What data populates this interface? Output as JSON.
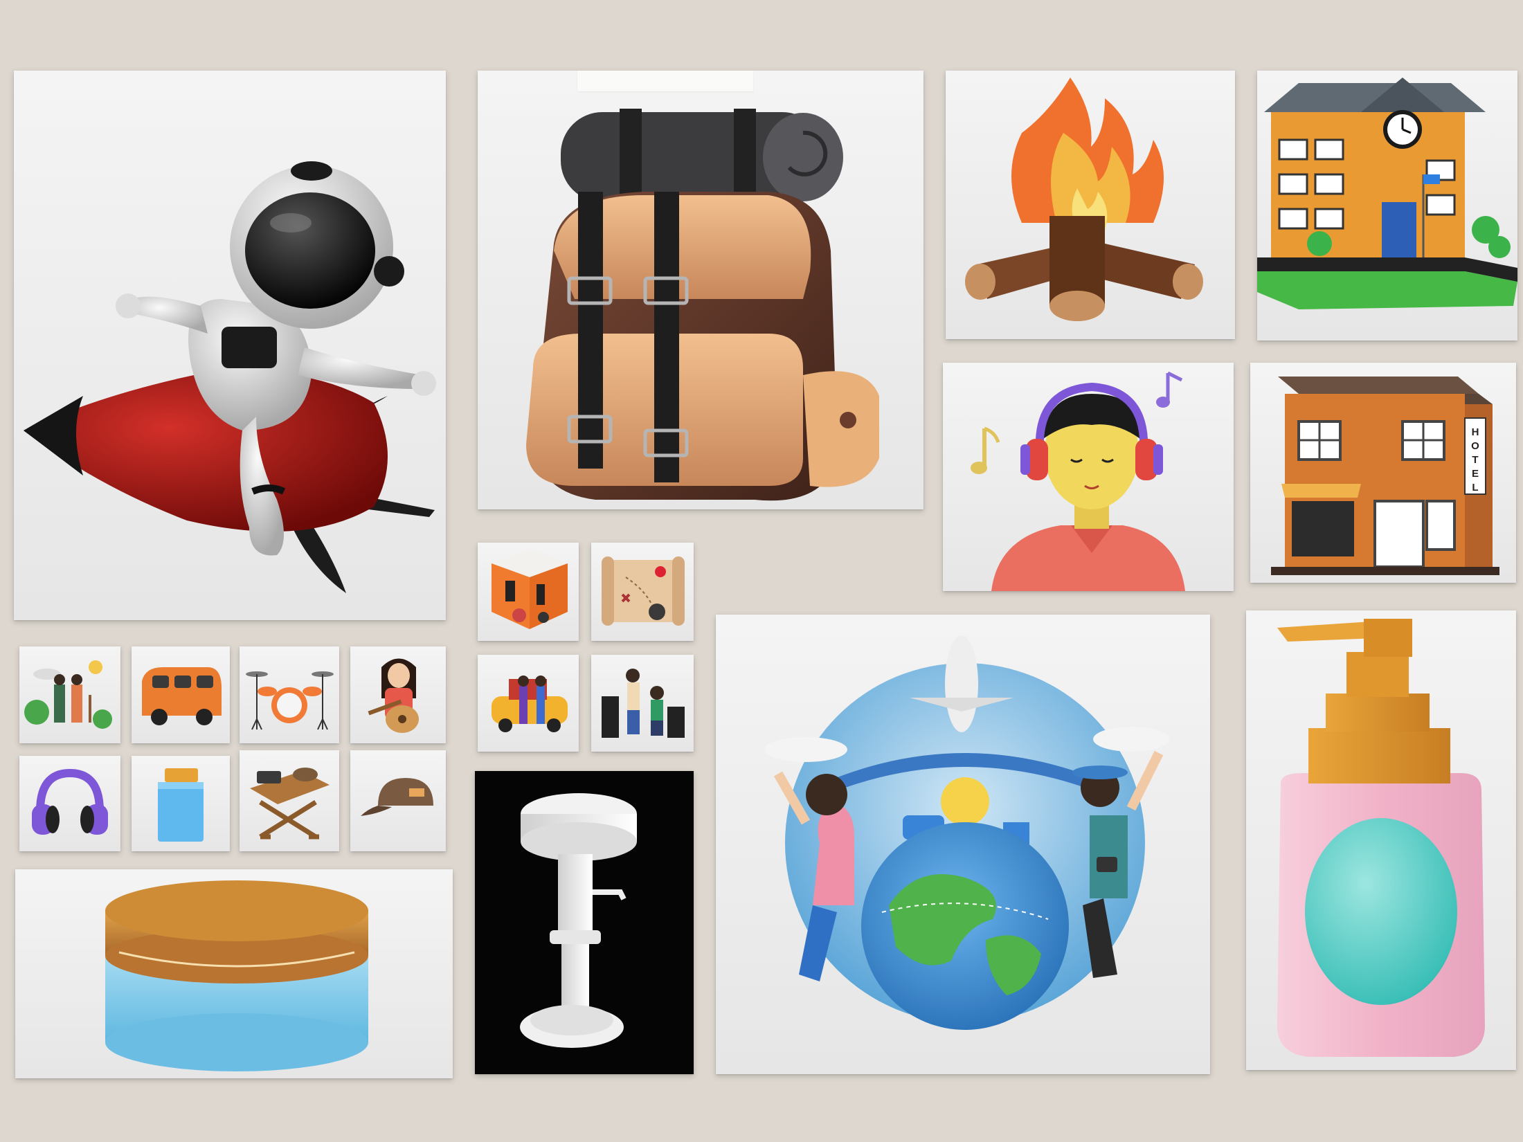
{
  "board": {
    "background": "#ddd7cf",
    "cards": [
      {
        "id": "astronaut-rocket",
        "icon": "astronaut-riding-rocket-icon"
      },
      {
        "id": "backpack",
        "icon": "hiking-backpack-icon"
      },
      {
        "id": "campfire",
        "icon": "campfire-icon"
      },
      {
        "id": "school-building",
        "icon": "school-building-icon"
      },
      {
        "id": "listener",
        "icon": "man-with-headphones-icon"
      },
      {
        "id": "hotel",
        "icon": "hotel-building-icon"
      },
      {
        "id": "studio-room",
        "icon": "music-studio-room-icon"
      },
      {
        "id": "treasure-map",
        "icon": "treasure-map-icon"
      },
      {
        "id": "travelers-car",
        "icon": "travelers-with-car-icon"
      },
      {
        "id": "musicians",
        "icon": "musicians-performing-icon"
      },
      {
        "id": "hikers",
        "icon": "hikers-icon"
      },
      {
        "id": "camper-van",
        "icon": "camper-van-icon"
      },
      {
        "id": "drum-kit",
        "icon": "drum-kit-icon"
      },
      {
        "id": "guitarist",
        "icon": "girl-playing-guitar-icon"
      },
      {
        "id": "headphones",
        "icon": "headphones-icon"
      },
      {
        "id": "jar",
        "icon": "blue-jar-icon"
      },
      {
        "id": "picnic-table",
        "icon": "folding-table-icon"
      },
      {
        "id": "cap",
        "icon": "baseball-cap-icon"
      },
      {
        "id": "round-tin",
        "icon": "cosmetic-tin-icon"
      },
      {
        "id": "bar-stool",
        "icon": "bar-stool-icon"
      },
      {
        "id": "world-travel",
        "icon": "world-travel-icon"
      },
      {
        "id": "pump-bottle",
        "icon": "pump-bottle-icon"
      }
    ]
  },
  "signs": {
    "hotel": "HOTEL"
  },
  "colors": {
    "rocket_red": "#9e1411",
    "backpack_brown": "#5c3427",
    "backpack_tan": "#e3a472",
    "fire_orange": "#f0702e",
    "building_orange": "#ea9a33",
    "headphone_purple": "#7d57d8",
    "shirt_red": "#ea6f60",
    "tin_lid": "#c9842f",
    "tin_body": "#8ecbe8",
    "bottle_pink": "#f2b9cc",
    "bottle_teal": "#5ed0c8",
    "globe_blue": "#3d8fd4",
    "globe_green": "#4fb24a"
  }
}
